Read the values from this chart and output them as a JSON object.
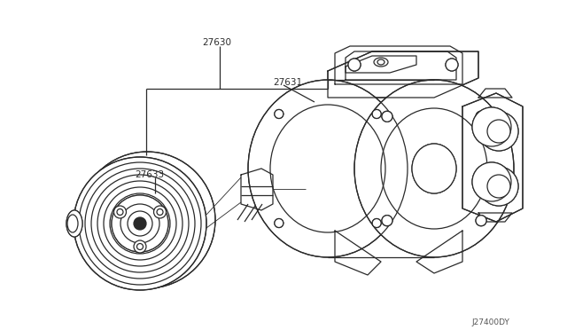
{
  "bg_color": "#ffffff",
  "line_color": "#2a2a2a",
  "text_color": "#2a2a2a",
  "label_27630": "27630",
  "label_27631": "27631",
  "label_27633": "27633",
  "diagram_code": "J27400DY",
  "lw_main": 0.9,
  "lw_thin": 0.6,
  "font_size": 7
}
